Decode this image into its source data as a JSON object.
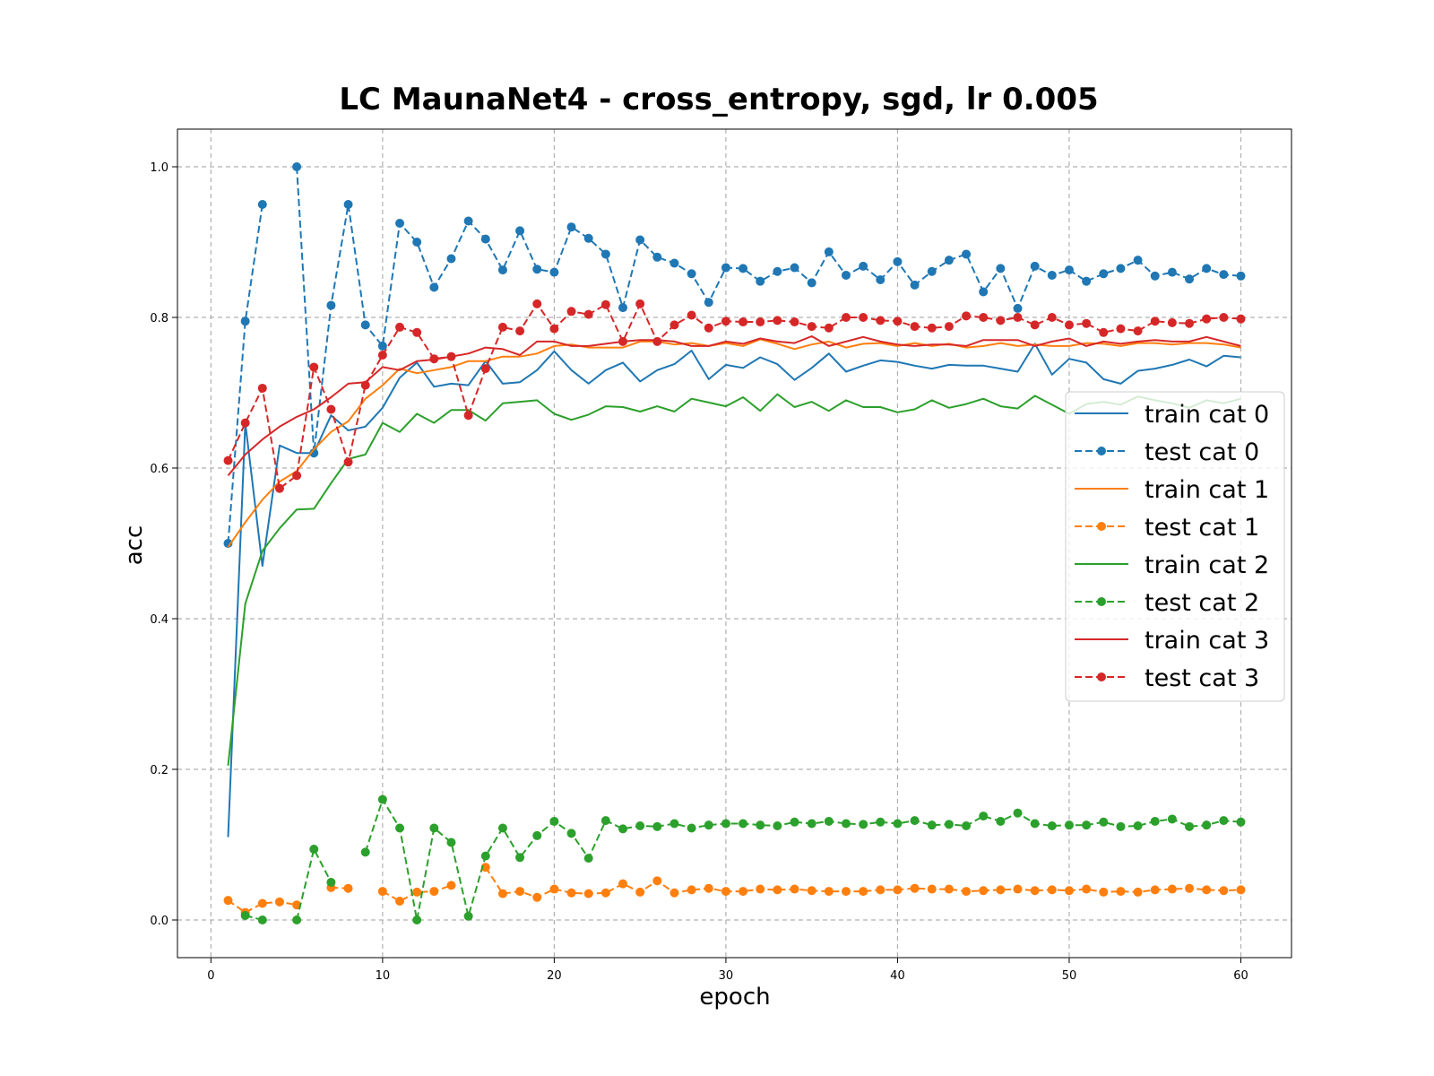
{
  "chart_data": {
    "type": "line",
    "title": "LC MaunaNet4 - cross_entropy, sgd, lr 0.005",
    "xlabel": "epoch",
    "ylabel": "acc",
    "xlim": [
      -1.95,
      62.95
    ],
    "ylim": [
      -0.05,
      1.05
    ],
    "xticks": [
      0,
      10,
      20,
      30,
      40,
      50,
      60
    ],
    "yticks": [
      0.0,
      0.2,
      0.4,
      0.6,
      0.8,
      1.0
    ],
    "grid": true,
    "grid_style": "dashed",
    "legend_position": "center-right",
    "x": [
      1,
      2,
      3,
      4,
      5,
      6,
      7,
      8,
      9,
      10,
      11,
      12,
      13,
      14,
      15,
      16,
      17,
      18,
      19,
      20,
      21,
      22,
      23,
      24,
      25,
      26,
      27,
      28,
      29,
      30,
      31,
      32,
      33,
      34,
      35,
      36,
      37,
      38,
      39,
      40,
      41,
      42,
      43,
      44,
      45,
      46,
      47,
      48,
      49,
      50,
      51,
      52,
      53,
      54,
      55,
      56,
      57,
      58,
      59,
      60
    ],
    "series": [
      {
        "name": "train cat 0",
        "color": "#1f77b4",
        "style": "solid",
        "marker": false,
        "values": [
          0.11,
          0.66,
          0.47,
          0.63,
          0.62,
          0.62,
          0.67,
          0.65,
          0.655,
          0.68,
          0.72,
          0.74,
          0.708,
          0.712,
          0.71,
          0.742,
          0.712,
          0.714,
          0.73,
          0.755,
          0.73,
          0.712,
          0.73,
          0.74,
          0.715,
          0.73,
          0.738,
          0.756,
          0.718,
          0.737,
          0.733,
          0.747,
          0.738,
          0.717,
          0.733,
          0.752,
          0.728,
          0.736,
          0.743,
          0.741,
          0.736,
          0.732,
          0.737,
          0.736,
          0.736,
          0.732,
          0.728,
          0.765,
          0.724,
          0.745,
          0.74,
          0.718,
          0.712,
          0.729,
          0.732,
          0.737,
          0.744,
          0.735,
          0.749,
          0.747
        ]
      },
      {
        "name": "test cat 0",
        "color": "#1f77b4",
        "style": "dashed",
        "marker": true,
        "values": [
          0.5,
          0.795,
          0.95,
          null,
          1.0,
          0.62,
          0.816,
          0.95,
          0.79,
          0.762,
          0.925,
          0.9,
          0.84,
          0.878,
          0.928,
          0.904,
          0.863,
          0.915,
          0.864,
          0.86,
          0.92,
          0.905,
          0.884,
          0.813,
          0.903,
          0.88,
          0.872,
          0.858,
          0.82,
          0.866,
          0.865,
          0.848,
          0.861,
          0.866,
          0.846,
          0.887,
          0.856,
          0.868,
          0.85,
          0.874,
          0.843,
          0.861,
          0.876,
          0.884,
          0.834,
          0.865,
          0.812,
          0.868,
          0.856,
          0.863,
          0.848,
          0.858,
          0.865,
          0.876,
          0.855,
          0.86,
          0.851,
          0.865,
          0.857,
          0.855
        ]
      },
      {
        "name": "train cat 1",
        "color": "#ff7f0e",
        "style": "solid",
        "marker": false,
        "values": [
          0.495,
          0.528,
          0.558,
          0.582,
          0.596,
          0.625,
          0.648,
          0.662,
          0.692,
          0.71,
          0.732,
          0.726,
          0.73,
          0.734,
          0.742,
          0.742,
          0.748,
          0.748,
          0.752,
          0.762,
          0.764,
          0.76,
          0.76,
          0.76,
          0.768,
          0.768,
          0.764,
          0.766,
          0.762,
          0.766,
          0.762,
          0.771,
          0.765,
          0.758,
          0.764,
          0.768,
          0.76,
          0.765,
          0.766,
          0.762,
          0.766,
          0.762,
          0.765,
          0.76,
          0.762,
          0.766,
          0.762,
          0.764,
          0.762,
          0.762,
          0.766,
          0.765,
          0.762,
          0.766,
          0.766,
          0.764,
          0.766,
          0.766,
          0.764,
          0.76
        ]
      },
      {
        "name": "test cat 1",
        "color": "#ff7f0e",
        "style": "dashed",
        "marker": true,
        "values": [
          0.026,
          0.01,
          0.022,
          0.024,
          0.02,
          null,
          0.043,
          0.042,
          null,
          0.038,
          0.025,
          0.037,
          0.038,
          0.046,
          null,
          0.07,
          0.035,
          0.038,
          0.03,
          0.041,
          0.036,
          0.035,
          0.036,
          0.048,
          0.037,
          0.052,
          0.036,
          0.04,
          0.042,
          0.038,
          0.038,
          0.041,
          0.04,
          0.041,
          0.039,
          0.038,
          0.038,
          0.038,
          0.04,
          0.04,
          0.042,
          0.041,
          0.041,
          0.038,
          0.039,
          0.04,
          0.041,
          0.039,
          0.04,
          0.039,
          0.041,
          0.037,
          0.038,
          0.037,
          0.04,
          0.041,
          0.042,
          0.04,
          0.039,
          0.04
        ]
      },
      {
        "name": "train cat 2",
        "color": "#2ca02c",
        "style": "solid",
        "marker": false,
        "values": [
          0.205,
          0.42,
          0.49,
          0.52,
          0.545,
          0.546,
          0.58,
          0.612,
          0.618,
          0.66,
          0.648,
          0.672,
          0.66,
          0.677,
          0.677,
          0.663,
          0.686,
          0.688,
          0.69,
          0.672,
          0.664,
          0.671,
          0.682,
          0.681,
          0.675,
          0.682,
          0.675,
          0.692,
          0.687,
          0.682,
          0.694,
          0.676,
          0.698,
          0.681,
          0.688,
          0.676,
          0.69,
          0.681,
          0.681,
          0.674,
          0.678,
          0.69,
          0.68,
          0.685,
          0.692,
          0.682,
          0.679,
          0.696,
          0.684,
          0.672,
          0.685,
          0.688,
          0.684,
          0.695,
          0.69,
          0.686,
          0.68,
          0.69,
          0.686,
          0.692
        ]
      },
      {
        "name": "test cat 2",
        "color": "#2ca02c",
        "style": "dashed",
        "marker": true,
        "values": [
          null,
          0.006,
          0.0,
          null,
          0.0,
          0.094,
          0.05,
          null,
          0.09,
          0.16,
          0.122,
          0.0,
          0.122,
          0.103,
          0.005,
          0.085,
          0.122,
          0.083,
          0.112,
          0.131,
          0.115,
          0.082,
          0.132,
          0.121,
          0.125,
          0.124,
          0.128,
          0.122,
          0.126,
          0.128,
          0.128,
          0.126,
          0.125,
          0.13,
          0.128,
          0.131,
          0.128,
          0.127,
          0.13,
          0.128,
          0.132,
          0.126,
          0.127,
          0.125,
          0.138,
          0.131,
          0.142,
          0.128,
          0.125,
          0.126,
          0.126,
          0.13,
          0.124,
          0.125,
          0.131,
          0.134,
          0.124,
          0.126,
          0.132,
          0.13
        ]
      },
      {
        "name": "train cat 3",
        "color": "#d62728",
        "style": "solid",
        "marker": false,
        "values": [
          0.59,
          0.618,
          0.638,
          0.655,
          0.668,
          0.678,
          0.694,
          0.712,
          0.714,
          0.734,
          0.73,
          0.742,
          0.744,
          0.748,
          0.752,
          0.76,
          0.758,
          0.75,
          0.768,
          0.768,
          0.762,
          0.762,
          0.765,
          0.768,
          0.77,
          0.77,
          0.768,
          0.762,
          0.762,
          0.768,
          0.765,
          0.772,
          0.768,
          0.766,
          0.775,
          0.762,
          0.768,
          0.774,
          0.768,
          0.764,
          0.762,
          0.764,
          0.764,
          0.762,
          0.77,
          0.77,
          0.77,
          0.762,
          0.768,
          0.772,
          0.762,
          0.768,
          0.765,
          0.768,
          0.77,
          0.768,
          0.768,
          0.774,
          0.768,
          0.762
        ]
      },
      {
        "name": "test cat 3",
        "color": "#d62728",
        "style": "dashed",
        "marker": true,
        "values": [
          0.61,
          0.66,
          0.706,
          0.573,
          0.59,
          0.734,
          0.678,
          0.608,
          0.71,
          0.75,
          0.787,
          0.78,
          0.745,
          0.748,
          0.67,
          0.732,
          0.787,
          0.782,
          0.818,
          0.785,
          0.808,
          0.804,
          0.817,
          0.768,
          0.818,
          0.768,
          0.79,
          0.803,
          0.786,
          0.795,
          0.794,
          0.794,
          0.796,
          0.794,
          0.788,
          0.786,
          0.8,
          0.8,
          0.796,
          0.795,
          0.788,
          0.786,
          0.788,
          0.802,
          0.8,
          0.796,
          0.8,
          0.79,
          0.8,
          0.79,
          0.792,
          0.78,
          0.785,
          0.782,
          0.795,
          0.793,
          0.792,
          0.798,
          0.8,
          0.798
        ]
      }
    ]
  }
}
